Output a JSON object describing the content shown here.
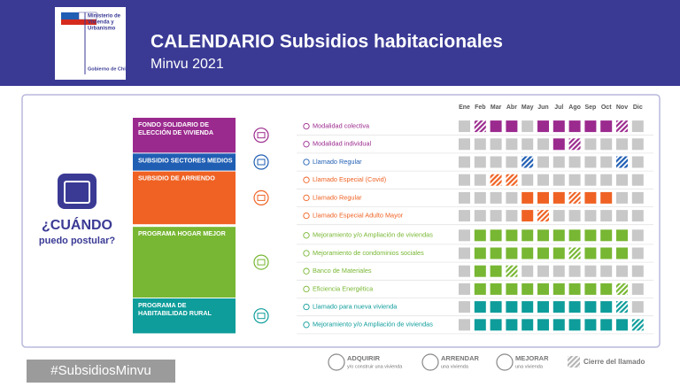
{
  "header": {
    "ministry": [
      "Ministerio de",
      "Vivienda y",
      "Urbanismo"
    ],
    "government": "Gobierno de Chile",
    "title": "CALENDARIO Subsidios habitacionales",
    "subtitle": "Minvu 2021"
  },
  "question": {
    "title": "¿CUÁNDO",
    "subtitle": "puedo postular?"
  },
  "months": [
    "Ene",
    "Feb",
    "Mar",
    "Abr",
    "May",
    "Jun",
    "Jul",
    "Ago",
    "Sep",
    "Oct",
    "Nov",
    "Dic"
  ],
  "cell_colors": {
    "closed": "#c8c8c8"
  },
  "programs": [
    {
      "name": [
        "FONDO SOLIDARIO DE",
        "ELECCIÓN DE VIVIENDA"
      ],
      "color": "#9b2a8e",
      "rows": [
        {
          "label": "Modalidad colectiva",
          "months": [
            "closed",
            "closing",
            "open",
            "open",
            "closed",
            "open",
            "open",
            "open",
            "open",
            "open",
            "closing",
            "closed"
          ]
        },
        {
          "label": "Modalidad individual",
          "months": [
            "closed",
            "closed",
            "closed",
            "closed",
            "closed",
            "closed",
            "open",
            "closing",
            "closed",
            "closed",
            "closed",
            "closed"
          ]
        }
      ]
    },
    {
      "name": [
        "SUBSIDIO SECTORES MEDIOS"
      ],
      "color": "#1f5eb3",
      "rows": [
        {
          "label": "Llamado Regular",
          "months": [
            "closed",
            "closed",
            "closed",
            "closed",
            "closing",
            "closed",
            "closed",
            "closed",
            "closed",
            "closed",
            "closing",
            "closed"
          ]
        }
      ]
    },
    {
      "name": [
        "SUBSIDIO DE ARRIENDO"
      ],
      "color": "#ef6223",
      "rows": [
        {
          "label": "Llamado Especial (Covid)",
          "months": [
            "closed",
            "closed",
            "closing",
            "closing",
            "closed",
            "closed",
            "closed",
            "closed",
            "closed",
            "closed",
            "closed",
            "closed"
          ]
        },
        {
          "label": "Llamado Regular",
          "months": [
            "closed",
            "closed",
            "closed",
            "closed",
            "open",
            "open",
            "open",
            "closing",
            "open",
            "open",
            "closed",
            "closed"
          ]
        },
        {
          "label": "Llamado Especial Adulto Mayor",
          "months": [
            "closed",
            "closed",
            "closed",
            "closed",
            "open",
            "closing",
            "closed",
            "closed",
            "closed",
            "closed",
            "closed",
            "closed"
          ]
        }
      ]
    },
    {
      "name": [
        "PROGRAMA HOGAR MEJOR"
      ],
      "color": "#78b733",
      "rows": [
        {
          "label": "Mejoramiento y/o Ampliación de viviendas",
          "months": [
            "closed",
            "open",
            "open",
            "open",
            "open",
            "open",
            "open",
            "open",
            "open",
            "open",
            "open",
            "closed"
          ]
        },
        {
          "label": "Mejoramiento de condominios sociales",
          "months": [
            "closed",
            "open",
            "open",
            "open",
            "open",
            "open",
            "open",
            "closing",
            "open",
            "open",
            "open",
            "closed"
          ]
        },
        {
          "label": "Banco de Materiales",
          "months": [
            "closed",
            "open",
            "open",
            "closing",
            "closed",
            "closed",
            "closed",
            "closed",
            "closed",
            "closed",
            "closed",
            "closed"
          ]
        },
        {
          "label": "Eficiencia Energética",
          "months": [
            "closed",
            "open",
            "open",
            "open",
            "open",
            "open",
            "open",
            "open",
            "open",
            "open",
            "closing",
            "closed"
          ]
        }
      ]
    },
    {
      "name": [
        "PROGRAMA DE",
        "HABITABILIDAD RURAL"
      ],
      "color": "#0e9d9b",
      "rows": [
        {
          "label": "Llamado para nueva vivienda",
          "months": [
            "closed",
            "open",
            "open",
            "open",
            "open",
            "open",
            "open",
            "open",
            "open",
            "open",
            "closing",
            "closed"
          ]
        },
        {
          "label": "Mejoramiento y/o Ampliación de viviendas",
          "months": [
            "closed",
            "open",
            "open",
            "open",
            "open",
            "open",
            "open",
            "open",
            "open",
            "open",
            "open",
            "closing"
          ]
        }
      ]
    }
  ],
  "hashtag": "#SubsidiosMinvu",
  "legend": [
    {
      "title": "ADQUIRIR",
      "text": "y/o construir una vivienda"
    },
    {
      "title": "ARRENDAR",
      "text": "una vivienda"
    },
    {
      "title": "MEJORAR",
      "text": "una vivienda"
    }
  ],
  "closing_legend": "Cierre del llamado"
}
